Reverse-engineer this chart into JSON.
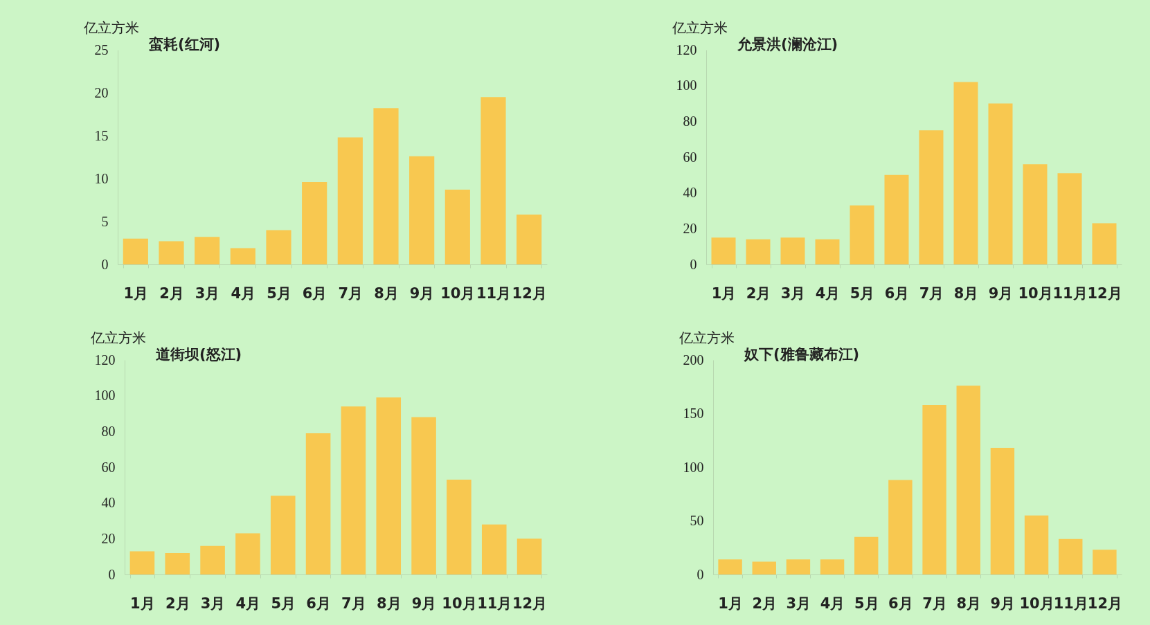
{
  "chart_data": [
    {
      "type": "bar",
      "title": "蛮耗(红河)",
      "ylabel": "亿立方米",
      "categories": [
        "1月",
        "2月",
        "3月",
        "4月",
        "5月",
        "6月",
        "7月",
        "8月",
        "9月",
        "10月",
        "11月",
        "12月"
      ],
      "values": [
        3.0,
        2.7,
        3.2,
        1.9,
        4.0,
        9.6,
        14.8,
        18.2,
        12.6,
        8.7,
        19.5,
        5.8
      ],
      "color": "#f8c850",
      "ylim": [
        0,
        25
      ],
      "yticks": [
        0,
        5,
        10,
        15,
        20,
        25
      ]
    },
    {
      "type": "bar",
      "title": "允景洪(澜沧江)",
      "ylabel": "亿立方米",
      "categories": [
        "1月",
        "2月",
        "3月",
        "4月",
        "5月",
        "6月",
        "7月",
        "8月",
        "9月",
        "10月",
        "11月",
        "12月"
      ],
      "values": [
        15,
        14,
        15,
        14,
        33,
        50,
        75,
        102,
        90,
        56,
        51,
        23
      ],
      "color": "#f8c850",
      "ylim": [
        0,
        120
      ],
      "yticks": [
        0,
        20,
        40,
        60,
        80,
        100,
        120
      ]
    },
    {
      "type": "bar",
      "title": "道街坝(怒江)",
      "ylabel": "亿立方米",
      "categories": [
        "1月",
        "2月",
        "3月",
        "4月",
        "5月",
        "6月",
        "7月",
        "8月",
        "9月",
        "10月",
        "11月",
        "12月"
      ],
      "values": [
        13,
        12,
        16,
        23,
        44,
        79,
        94,
        99,
        88,
        53,
        28,
        20
      ],
      "color": "#f8c850",
      "ylim": [
        0,
        120
      ],
      "yticks": [
        0,
        20,
        40,
        60,
        80,
        100,
        120
      ]
    },
    {
      "type": "bar",
      "title": "奴下(雅鲁藏布江)",
      "ylabel": "亿立方米",
      "categories": [
        "1月",
        "2月",
        "3月",
        "4月",
        "5月",
        "6月",
        "7月",
        "8月",
        "9月",
        "10月",
        "11月",
        "12月"
      ],
      "values": [
        14,
        12,
        14,
        14,
        35,
        88,
        158,
        176,
        118,
        55,
        33,
        23
      ],
      "color": "#f8c850",
      "ylim": [
        0,
        200
      ],
      "yticks": [
        0,
        50,
        100,
        150,
        200
      ]
    }
  ]
}
